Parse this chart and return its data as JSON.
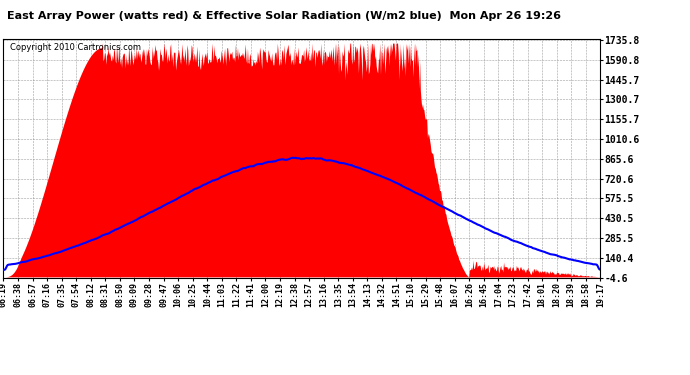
{
  "title": "East Array Power (watts red) & Effective Solar Radiation (W/m2 blue)  Mon Apr 26 19:26",
  "copyright": "Copyright 2010 Cartronics.com",
  "background_color": "#ffffff",
  "plot_bg_color": "#ffffff",
  "grid_color": "#888888",
  "red_color": "#ff0000",
  "blue_color": "#0000ff",
  "yticks": [
    1735.8,
    1590.8,
    1445.7,
    1300.7,
    1155.7,
    1010.6,
    865.6,
    720.6,
    575.5,
    430.5,
    285.5,
    140.4,
    -4.6
  ],
  "ymin": -4.6,
  "ymax": 1735.8,
  "xtick_labels": [
    "06:19",
    "06:38",
    "06:57",
    "07:16",
    "07:35",
    "07:54",
    "08:12",
    "08:31",
    "08:50",
    "09:09",
    "09:28",
    "09:47",
    "10:06",
    "10:25",
    "10:44",
    "11:03",
    "11:22",
    "11:41",
    "12:00",
    "12:19",
    "12:38",
    "12:57",
    "13:16",
    "13:35",
    "13:54",
    "14:13",
    "14:32",
    "14:51",
    "15:10",
    "15:29",
    "15:48",
    "16:07",
    "16:26",
    "16:45",
    "17:04",
    "17:23",
    "17:42",
    "18:01",
    "18:20",
    "18:39",
    "18:58",
    "19:17"
  ],
  "num_points": 840,
  "power_peak": 1680.0,
  "solar_peak": 870.0
}
